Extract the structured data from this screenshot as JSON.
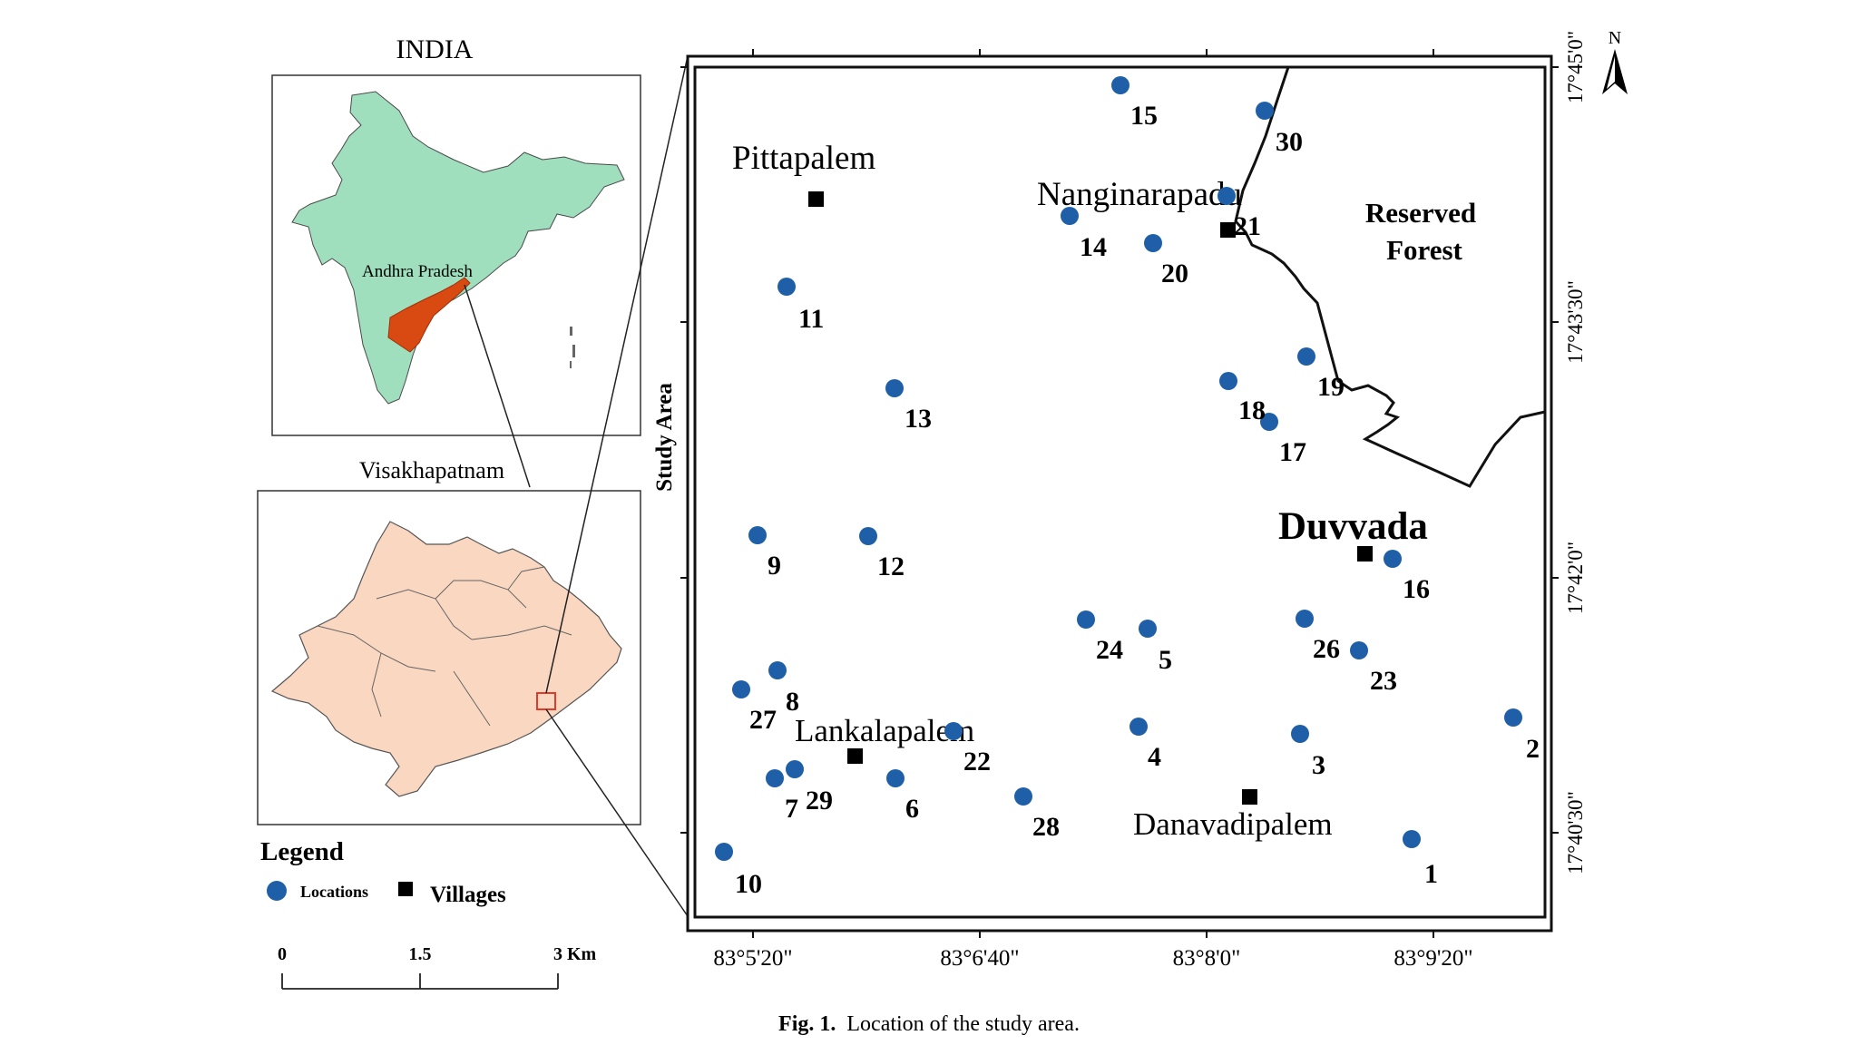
{
  "india_map": {
    "title": "INDIA",
    "state_label": "Andhra Pradesh",
    "colors": {
      "country": "#9fdfbe",
      "state": "#d94a12",
      "outline": "#4a4a4a"
    }
  },
  "district_map": {
    "title": "Visakhapatnam",
    "colors": {
      "district": "#f9d7c1",
      "outline": "#555555",
      "marker": "#e03a2a"
    }
  },
  "study_area": {
    "label": "Study Area",
    "colors": {
      "point": "#1f5fa8",
      "village": "#000000"
    },
    "x_ticks": [
      "83°5'20\"",
      "83°6'40\"",
      "83°8'0\"",
      "83°9'20\""
    ],
    "y_ticks": [
      "17°45'0\"",
      "17°43'30\"",
      "17°42'0\"",
      "17°40'30\""
    ],
    "north_label": "N",
    "forest_label_line1": "Reserved",
    "forest_label_line2": "Forest",
    "villages": [
      {
        "name": "Pittapalem",
        "lon": "83°5'48\"",
        "lat": "17°44'16\""
      },
      {
        "name": "Nanginarapadu",
        "lon": "83°8'12\"",
        "lat": "17°44'11\""
      },
      {
        "name": "Duvvada",
        "lon": "83°9'0\"",
        "lat": "17°42'6\""
      },
      {
        "name": "Lankalapalem",
        "lon": "83°6'4\"",
        "lat": "17°40'58\""
      },
      {
        "name": "Danavadipalem",
        "lon": "83°8'20\"",
        "lat": "17°40'44\""
      }
    ],
    "locations": [
      {
        "id": "1"
      },
      {
        "id": "2"
      },
      {
        "id": "3"
      },
      {
        "id": "4"
      },
      {
        "id": "5"
      },
      {
        "id": "6"
      },
      {
        "id": "7"
      },
      {
        "id": "8"
      },
      {
        "id": "9"
      },
      {
        "id": "10"
      },
      {
        "id": "11"
      },
      {
        "id": "12"
      },
      {
        "id": "13"
      },
      {
        "id": "14"
      },
      {
        "id": "15"
      },
      {
        "id": "16"
      },
      {
        "id": "17"
      },
      {
        "id": "18"
      },
      {
        "id": "19"
      },
      {
        "id": "20"
      },
      {
        "id": "21"
      },
      {
        "id": "22"
      },
      {
        "id": "23"
      },
      {
        "id": "24"
      },
      {
        "id": "26"
      },
      {
        "id": "27"
      },
      {
        "id": "28"
      },
      {
        "id": "29"
      },
      {
        "id": "30"
      }
    ]
  },
  "legend": {
    "title": "Legend",
    "locations_label": "Locations",
    "villages_label": "Villages"
  },
  "scale_bar": {
    "labels": [
      "0",
      "1.5",
      "3 Km"
    ]
  },
  "caption": {
    "prefix": "Fig. 1.",
    "text": "Location of the study area."
  }
}
